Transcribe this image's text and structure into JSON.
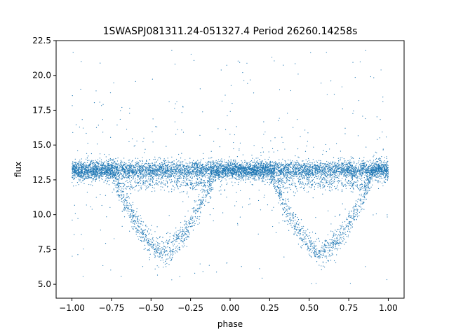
{
  "chart_data": {
    "type": "scatter",
    "title": "1SWASPJ081311.24-051327.4 Period 26260.14258s",
    "xlabel": "phase",
    "ylabel": "flux",
    "xlim": [
      -1.1,
      1.1
    ],
    "ylim": [
      4.0,
      22.5
    ],
    "x_ticks": [
      -1.0,
      -0.75,
      -0.5,
      -0.25,
      0.0,
      0.25,
      0.5,
      0.75,
      1.0
    ],
    "x_tick_labels": [
      "−1.00",
      "−0.75",
      "−0.50",
      "−0.25",
      "0.00",
      "0.25",
      "0.50",
      "0.75",
      "1.00"
    ],
    "y_ticks": [
      5.0,
      7.5,
      10.0,
      12.5,
      15.0,
      17.5,
      20.0,
      22.5
    ],
    "y_tick_labels": [
      "5.0",
      "7.5",
      "10.0",
      "12.5",
      "15.0",
      "17.5",
      "20.0",
      "22.5"
    ],
    "grid": false,
    "marker_color": "#1f77b4",
    "phase_range": [
      -1.0,
      1.0
    ],
    "baseline_flux": 13.2,
    "eclipse_centers": [
      -0.42,
      0.58
    ],
    "eclipse_min_flux": 7.3
  }
}
